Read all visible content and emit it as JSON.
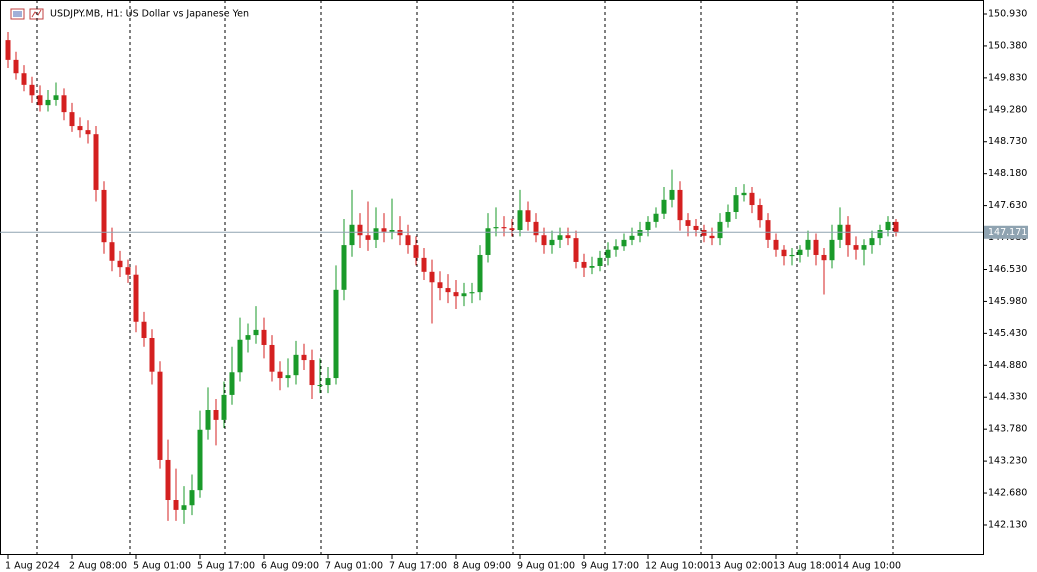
{
  "chart_data": {
    "type": "candlestick",
    "title": "USDJPY.MB, H1:  US Dollar vs Japanese Yen",
    "up_color": "#1a9a2a",
    "down_color": "#d42020",
    "price_line_color": "#8fa3b1",
    "last_price": 147.171,
    "ylim": [
      141.613,
      151.171
    ],
    "yticks": [
      {
        "value": 150.93,
        "label": "150.930"
      },
      {
        "value": 150.38,
        "label": "150.380"
      },
      {
        "value": 149.83,
        "label": "149.830"
      },
      {
        "value": 149.28,
        "label": "149.280"
      },
      {
        "value": 148.73,
        "label": "148.730"
      },
      {
        "value": 148.18,
        "label": "148.180"
      },
      {
        "value": 147.63,
        "label": "147.630"
      },
      {
        "value": 147.08,
        "label": "147.080"
      },
      {
        "value": 146.53,
        "label": "146.530"
      },
      {
        "value": 145.98,
        "label": "145.980"
      },
      {
        "value": 145.43,
        "label": "145.430"
      },
      {
        "value": 144.88,
        "label": "144.880"
      },
      {
        "value": 144.33,
        "label": "144.330"
      },
      {
        "value": 143.78,
        "label": "143.780"
      },
      {
        "value": 143.23,
        "label": "143.230"
      },
      {
        "value": 142.68,
        "label": "142.680"
      },
      {
        "value": 142.13,
        "label": "142.130"
      }
    ],
    "xticks": [
      {
        "value": 0,
        "label": "1 Aug 2024"
      },
      {
        "value": 8,
        "label": "2 Aug 08:00"
      },
      {
        "value": 16,
        "label": "5 Aug 01:00"
      },
      {
        "value": 24,
        "label": "5 Aug 17:00"
      },
      {
        "value": 32,
        "label": "6 Aug 09:00"
      },
      {
        "value": 40,
        "label": "7 Aug 01:00"
      },
      {
        "value": 48,
        "label": "7 Aug 17:00"
      },
      {
        "value": 56,
        "label": "8 Aug 09:00"
      },
      {
        "value": 64,
        "label": "9 Aug 01:00"
      },
      {
        "value": 72,
        "label": "9 Aug 17:00"
      },
      {
        "value": 80,
        "label": "12 Aug 10:00"
      },
      {
        "value": 88,
        "label": "13 Aug 02:00"
      },
      {
        "value": 96,
        "label": "13 Aug 18:00"
      },
      {
        "value": 104,
        "label": "14 Aug 10:00"
      }
    ],
    "open": [
      150.48,
      150.14,
      149.91,
      149.71,
      149.53,
      149.36,
      149.45,
      149.53,
      149.24,
      149.0,
      148.93,
      148.86,
      147.9,
      147.0,
      146.68,
      146.57,
      146.44,
      145.63,
      145.35,
      144.77,
      143.25,
      142.56,
      142.39,
      142.47,
      142.73,
      143.77,
      144.11,
      143.94,
      144.37,
      144.76,
      145.32,
      145.4,
      145.49,
      145.23,
      144.77,
      144.66,
      144.71,
      145.06,
      144.97,
      144.54,
      144.54,
      144.66,
      146.18,
      146.95,
      147.3,
      147.12,
      147.04,
      147.24,
      147.18,
      147.21,
      147.12,
      146.95,
      146.73,
      146.49,
      146.31,
      146.21,
      146.14,
      146.07,
      146.12,
      146.14,
      146.78,
      147.24,
      147.26,
      147.24,
      147.21,
      147.55,
      147.35,
      147.12,
      146.95,
      147.04,
      147.12,
      147.07,
      146.66,
      146.56,
      146.59,
      146.73,
      146.87,
      146.93,
      147.04,
      147.11,
      147.21,
      147.35,
      147.49,
      147.73,
      147.9,
      147.38,
      147.28,
      147.21,
      147.11,
      147.07,
      147.35,
      147.52,
      147.81,
      147.85,
      147.64,
      147.38,
      147.04,
      146.87,
      146.76,
      146.78,
      146.87,
      147.04,
      146.78,
      146.69,
      147.04,
      147.3,
      146.95,
      146.87,
      146.95,
      147.07,
      147.21,
      147.35
    ],
    "high": [
      150.62,
      150.28,
      150.05,
      149.85,
      149.7,
      149.62,
      149.75,
      149.65,
      149.4,
      149.15,
      149.1,
      149.0,
      148.05,
      147.25,
      146.85,
      146.7,
      146.6,
      145.8,
      145.5,
      144.95,
      143.6,
      143.1,
      142.8,
      143.0,
      144.1,
      144.5,
      144.3,
      144.6,
      145.2,
      145.7,
      145.6,
      145.9,
      145.7,
      145.4,
      144.95,
      145.0,
      145.3,
      145.25,
      145.15,
      145.0,
      144.85,
      146.6,
      147.4,
      147.9,
      147.5,
      147.7,
      147.6,
      147.5,
      147.75,
      147.45,
      147.3,
      147.1,
      146.9,
      146.7,
      146.5,
      146.45,
      146.35,
      146.3,
      146.3,
      146.95,
      147.5,
      147.6,
      147.45,
      147.4,
      147.9,
      147.7,
      147.5,
      147.25,
      147.2,
      147.25,
      147.25,
      147.2,
      146.8,
      146.75,
      146.85,
      147.0,
      147.05,
      147.15,
      147.25,
      147.35,
      147.45,
      147.6,
      147.95,
      148.25,
      148.05,
      147.5,
      147.4,
      147.3,
      147.25,
      147.5,
      147.65,
      147.95,
      148.0,
      147.95,
      147.75,
      147.5,
      147.15,
      146.95,
      146.9,
      146.95,
      147.2,
      147.15,
      146.9,
      147.3,
      147.6,
      147.45,
      147.1,
      147.05,
      147.2,
      147.3,
      147.45,
      147.4
    ],
    "low": [
      150.0,
      149.8,
      149.6,
      149.4,
      149.25,
      149.25,
      149.35,
      149.1,
      148.9,
      148.8,
      148.7,
      147.7,
      146.8,
      146.5,
      146.4,
      146.3,
      145.45,
      145.2,
      144.55,
      143.1,
      142.2,
      142.2,
      142.15,
      142.3,
      142.6,
      143.6,
      143.5,
      143.8,
      144.2,
      144.6,
      145.1,
      145.25,
      145.0,
      144.6,
      144.45,
      144.5,
      144.55,
      144.8,
      144.3,
      144.4,
      144.4,
      144.55,
      146.0,
      146.75,
      146.9,
      146.85,
      146.9,
      147.0,
      147.05,
      146.95,
      146.8,
      146.6,
      146.35,
      145.6,
      146.0,
      145.95,
      145.85,
      145.9,
      145.95,
      146.0,
      146.65,
      147.1,
      147.1,
      147.1,
      147.1,
      147.2,
      147.0,
      146.8,
      146.8,
      146.9,
      146.95,
      146.55,
      146.4,
      146.45,
      146.5,
      146.6,
      146.75,
      146.85,
      146.95,
      147.0,
      147.1,
      147.25,
      147.4,
      147.6,
      147.2,
      147.1,
      147.1,
      147.0,
      146.95,
      146.95,
      147.25,
      147.4,
      147.7,
      147.5,
      147.25,
      146.9,
      146.75,
      146.6,
      146.6,
      146.65,
      146.75,
      146.6,
      146.1,
      146.55,
      146.9,
      146.75,
      146.7,
      146.6,
      146.8,
      146.95,
      147.1,
      147.1
    ],
    "close": [
      150.14,
      149.91,
      149.71,
      149.53,
      149.36,
      149.45,
      149.53,
      149.24,
      149.0,
      148.93,
      148.86,
      147.9,
      147.0,
      146.68,
      146.57,
      146.44,
      145.63,
      145.35,
      144.77,
      143.25,
      142.56,
      142.39,
      142.47,
      142.73,
      143.77,
      144.11,
      143.94,
      144.37,
      144.76,
      145.32,
      145.4,
      145.49,
      145.23,
      144.77,
      144.66,
      144.71,
      145.06,
      144.97,
      144.54,
      144.54,
      144.66,
      146.18,
      146.95,
      147.3,
      147.12,
      147.04,
      147.24,
      147.18,
      147.21,
      147.12,
      146.95,
      146.73,
      146.49,
      146.31,
      146.21,
      146.14,
      146.07,
      146.12,
      146.14,
      146.78,
      147.24,
      147.26,
      147.24,
      147.21,
      147.55,
      147.35,
      147.12,
      146.95,
      147.04,
      147.12,
      147.07,
      146.66,
      146.56,
      146.59,
      146.73,
      146.87,
      146.93,
      147.04,
      147.11,
      147.21,
      147.35,
      147.49,
      147.73,
      147.9,
      147.38,
      147.28,
      147.21,
      147.11,
      147.07,
      147.35,
      147.52,
      147.81,
      147.85,
      147.64,
      147.38,
      147.04,
      146.87,
      146.76,
      146.78,
      146.87,
      147.04,
      146.78,
      146.69,
      147.04,
      147.3,
      146.95,
      146.87,
      146.95,
      147.07,
      147.21,
      147.35,
      147.17
    ]
  }
}
